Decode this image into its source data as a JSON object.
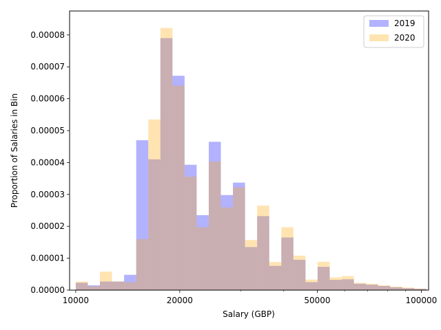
{
  "chart_data": {
    "type": "bar",
    "xlabel": "Salary (GBP)",
    "ylabel": "Proportion of Salaries in Bin",
    "x_scale": "log",
    "xlim": [
      9600,
      105000
    ],
    "ylim": [
      0,
      8.75e-05
    ],
    "x_ticks": [
      {
        "value": 10000,
        "label": "10000"
      },
      {
        "value": 20000,
        "label": "20000"
      },
      {
        "value": 50000,
        "label": "50000"
      },
      {
        "value": 100000,
        "label": "100000"
      }
    ],
    "y_ticks": [
      {
        "value": 0,
        "label": "0.00000"
      },
      {
        "value": 1e-05,
        "label": "0.00001"
      },
      {
        "value": 2e-05,
        "label": "0.00002"
      },
      {
        "value": 3e-05,
        "label": "0.00003"
      },
      {
        "value": 4e-05,
        "label": "0.00004"
      },
      {
        "value": 5e-05,
        "label": "0.00005"
      },
      {
        "value": 6e-05,
        "label": "0.00006"
      },
      {
        "value": 7e-05,
        "label": "0.00007"
      },
      {
        "value": 8e-05,
        "label": "0.00008"
      }
    ],
    "bin_edges": [
      10000,
      10839,
      11749,
      12735,
      13804,
      14962,
      16218,
      17579,
      19055,
      20654,
      22387,
      24266,
      26303,
      28511,
      30903,
      33497,
      36308,
      39355,
      42658,
      46239,
      50119,
      54325,
      58884,
      63826,
      69183,
      74989,
      81283,
      88105,
      95499,
      103514
    ],
    "series": [
      {
        "name": "2019",
        "color": "#0000ff",
        "opacity": 0.3,
        "values": [
          2.3e-06,
          1.5e-06,
          2.7e-06,
          2.7e-06,
          4.8e-06,
          4.7e-05,
          4.1e-05,
          7.9e-05,
          6.72e-05,
          3.93e-05,
          2.35e-05,
          4.65e-05,
          2.98e-05,
          3.37e-05,
          1.35e-05,
          2.32e-05,
          7.6e-06,
          1.65e-05,
          9.5e-06,
          2.5e-06,
          7.3e-06,
          3.2e-06,
          3.4e-06,
          2e-06,
          1.7e-06,
          1.3e-06,
          9e-07,
          6e-07,
          4e-07
        ]
      },
      {
        "name": "2020",
        "color": "#ffa500",
        "opacity": 0.3,
        "values": [
          2.7e-06,
          1.2e-06,
          5.8e-06,
          2.7e-06,
          2.5e-06,
          1.6e-05,
          5.35e-05,
          8.22e-05,
          6.41e-05,
          3.56e-05,
          1.97e-05,
          4.03e-05,
          2.59e-05,
          3.22e-05,
          1.57e-05,
          2.65e-05,
          8.8e-06,
          1.97e-05,
          1.08e-05,
          3.3e-06,
          8.9e-06,
          4e-06,
          4.4e-06,
          2.3e-06,
          2e-06,
          1.5e-06,
          1.1e-06,
          8e-07,
          5e-07
        ]
      }
    ],
    "legend": {
      "position": "top-right",
      "entries": [
        "2019",
        "2020"
      ]
    },
    "grid": false
  }
}
